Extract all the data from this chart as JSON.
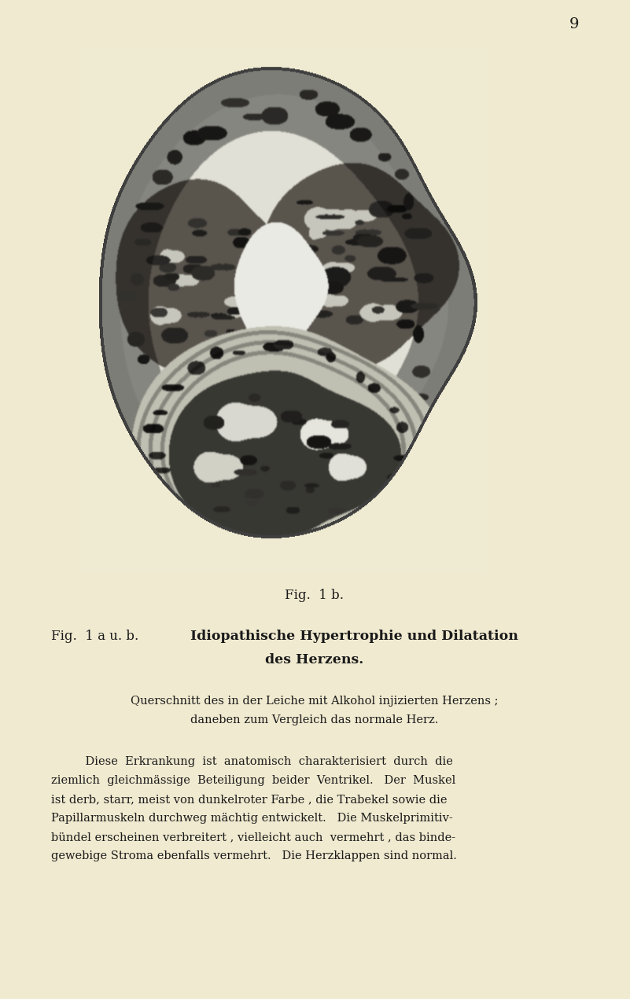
{
  "page_number": "9",
  "page_bg_color": "#f0ead0",
  "text_color": "#1a1a1a",
  "fig_caption": "Fig.  1 b.",
  "heading_prefix": "Fig.  1 a u. b.",
  "heading_bold1": "Idiopathische Hypertrophie und Dilatation",
  "heading_bold2": "des Herzens.",
  "sub1": "Querschnitt des in der Leiche mit Alkohol injizierten Herzens ;",
  "sub2": "daneben zum Vergleich das normale Herz.",
  "body_lines": [
    "Diese  Erkrankung  ist  anatomisch  charakterisiert  durch  die",
    "ziemlich  gleichmässige  Beteiligung  beider  Ventrikel.   Der  Muskel",
    "ist derb, starr, meist von dunkelroter Farbe , die Trabekel sowie die",
    "Papillarmuskeln durchweg mächtig entwickelt.   Die Muskelprimitiv-",
    "bündel erscheinen verbreitert , vielleicht auch  vermehrt , das binde-",
    "gewebige Stroma ebenfalls vermehrt.   Die Herzklappen sind normal."
  ]
}
